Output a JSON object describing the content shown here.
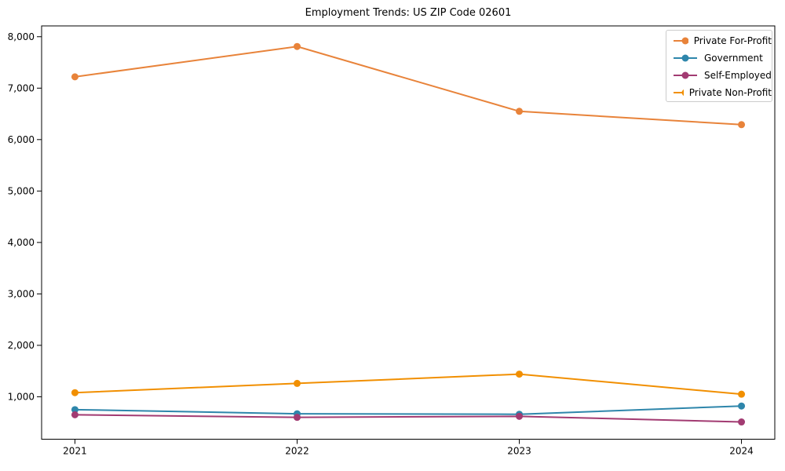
{
  "chart_data": {
    "type": "line",
    "title": "Employment Trends: US ZIP Code 02601",
    "xlabel": "",
    "ylabel": "",
    "x": [
      2021,
      2022,
      2023,
      2024
    ],
    "x_labels": [
      "2021",
      "2022",
      "2023",
      "2024"
    ],
    "series": [
      {
        "name": "Private For-Profit",
        "color": "#E8833A",
        "values": [
          7220,
          7810,
          6550,
          6290
        ]
      },
      {
        "name": "Government",
        "color": "#2E86AB",
        "values": [
          750,
          670,
          660,
          820
        ]
      },
      {
        "name": "Self-Employed",
        "color": "#A23B72",
        "values": [
          650,
          600,
          620,
          510
        ]
      },
      {
        "name": "Private Non-Profit",
        "color": "#F18F01",
        "values": [
          1080,
          1260,
          1440,
          1050
        ]
      }
    ],
    "yticks": [
      1000,
      2000,
      3000,
      4000,
      5000,
      6000,
      7000,
      8000
    ],
    "ytick_labels": [
      "1,000",
      "2,000",
      "3,000",
      "4,000",
      "5,000",
      "6,000",
      "7,000",
      "8,000"
    ],
    "xlim": [
      2020.85,
      2024.15
    ],
    "ylim": [
      175,
      8210
    ],
    "grid": false,
    "legend_position": "upper right",
    "axis_color": "#000000",
    "legend_border_color": "#cccccc",
    "marker": "o"
  }
}
